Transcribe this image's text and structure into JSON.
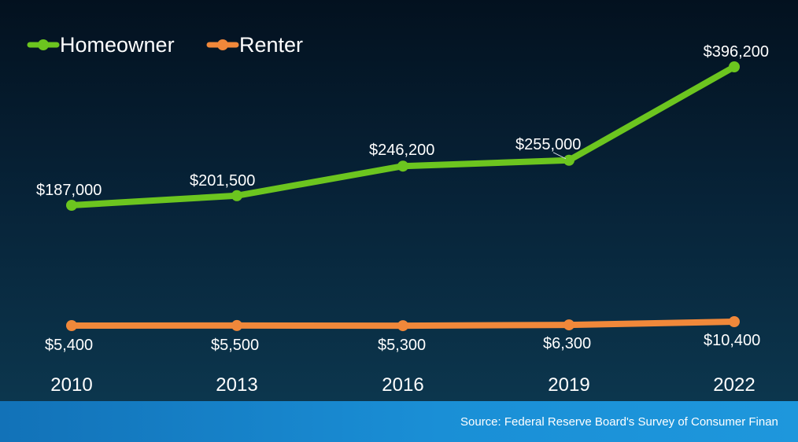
{
  "chart_data": {
    "type": "line",
    "title": "",
    "xlabel": "",
    "ylabel": "",
    "categories": [
      "2010",
      "2013",
      "2016",
      "2019",
      "2022"
    ],
    "series": [
      {
        "name": "Homeowner",
        "color": "#6cc51f",
        "values": [
          187000,
          201500,
          246200,
          255000,
          396200
        ],
        "labels": [
          "$187,000",
          "$201,500",
          "$246,200",
          "$255,000",
          "$396,200"
        ]
      },
      {
        "name": "Renter",
        "color": "#f0883a",
        "values": [
          5400,
          5500,
          5300,
          6300,
          10400
        ],
        "labels": [
          "$5,400",
          "$5,500",
          "$5,300",
          "$6,300",
          "$10,400"
        ]
      }
    ],
    "legend_position": "top-left",
    "grid": false
  },
  "footer": {
    "source": "Source: Federal Reserve Board's Survey of Consumer Finan"
  }
}
